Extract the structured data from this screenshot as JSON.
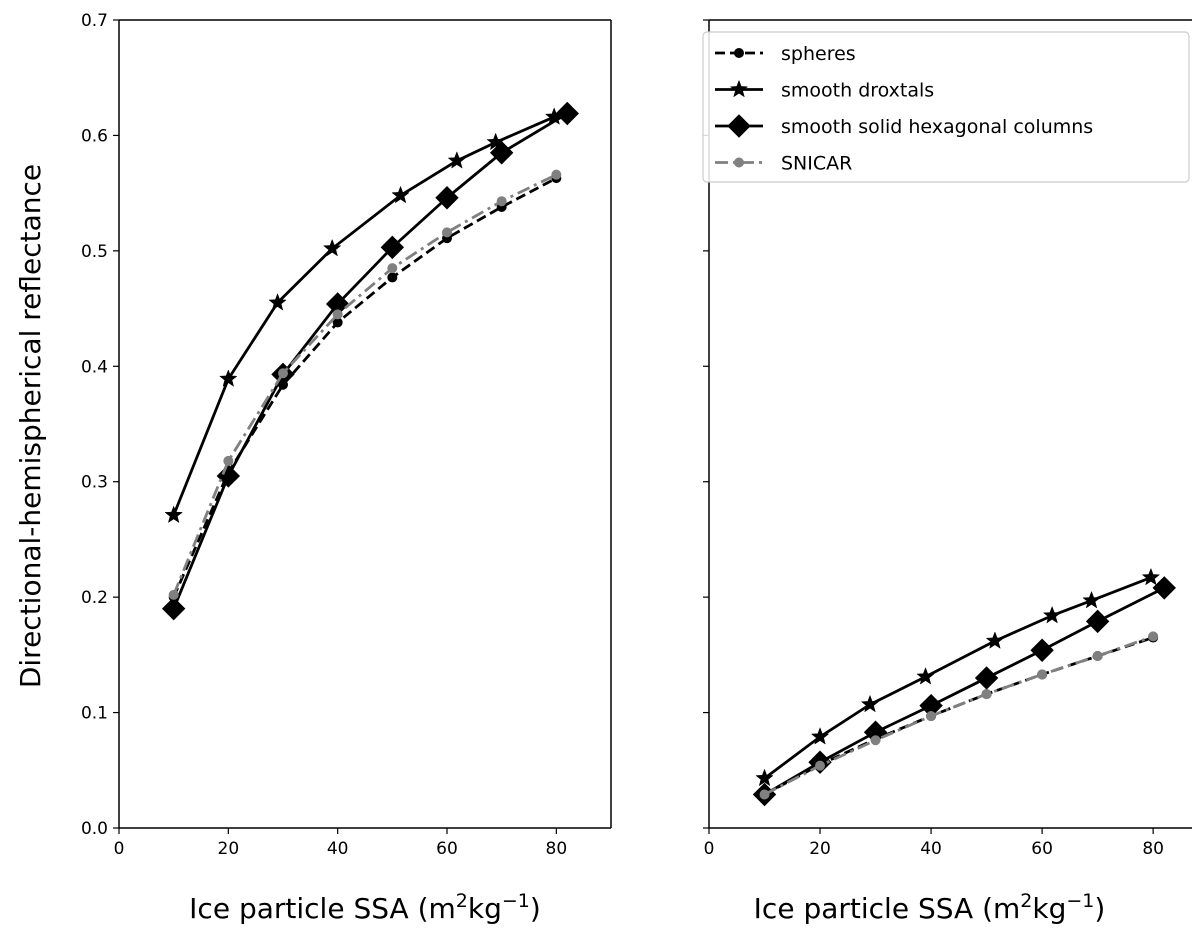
{
  "chart_data": [
    {
      "type": "line",
      "panel": "left",
      "ylabel": "Directional-hemispherical reflectance",
      "xlabel": {
        "main": "Ice particle SSA (m",
        "sup1": "2",
        "mid": "kg",
        "sup2": "−1",
        "end": ")"
      },
      "xlim": [
        0,
        90
      ],
      "ylim": [
        0.0,
        0.7
      ],
      "xticks": [
        "0",
        "20",
        "40",
        "60",
        "80"
      ],
      "xtick_values": [
        0,
        20,
        40,
        60,
        80
      ],
      "yticks": [
        "0.0",
        "0.1",
        "0.2",
        "0.3",
        "0.4",
        "0.5",
        "0.6",
        "0.7"
      ],
      "ytick_values": [
        0.0,
        0.1,
        0.2,
        0.3,
        0.4,
        0.5,
        0.6,
        0.7
      ],
      "show_ytick_labels": true,
      "grid": false,
      "series": [
        {
          "name": "spheres",
          "color": "#000000",
          "dash": "dashed",
          "marker": "circle",
          "x": [
            10,
            20,
            30,
            40,
            50,
            60,
            70,
            80
          ],
          "y": [
            0.2,
            0.308,
            0.384,
            0.438,
            0.477,
            0.511,
            0.538,
            0.563
          ]
        },
        {
          "name": "smooth droxtals",
          "color": "#000000",
          "dash": "solid",
          "marker": "star",
          "x": [
            10,
            20,
            29,
            39,
            51.5,
            61.8,
            68.9,
            79.6
          ],
          "y": [
            0.271,
            0.389,
            0.455,
            0.502,
            0.548,
            0.578,
            0.594,
            0.616
          ]
        },
        {
          "name": "smooth solid hexagonal columns",
          "color": "#000000",
          "dash": "solid",
          "marker": "diamond",
          "x": [
            10,
            20,
            30,
            40,
            50,
            60,
            70,
            82
          ],
          "y": [
            0.19,
            0.305,
            0.393,
            0.454,
            0.503,
            0.546,
            0.585,
            0.619
          ]
        },
        {
          "name": "SNICAR",
          "color": "#808080",
          "dash": "dashdot",
          "marker": "circle",
          "x": [
            10,
            20,
            30,
            40,
            50,
            60,
            70,
            80
          ],
          "y": [
            0.202,
            0.318,
            0.394,
            0.445,
            0.485,
            0.516,
            0.543,
            0.566
          ]
        }
      ]
    },
    {
      "type": "line",
      "panel": "right",
      "ylabel": "",
      "xlabel": {
        "main": "Ice particle SSA (m",
        "sup1": "2",
        "mid": "kg",
        "sup2": "−1",
        "end": ")"
      },
      "xlim": [
        0,
        87
      ],
      "ylim": [
        0.0,
        0.7
      ],
      "xticks": [
        "0",
        "20",
        "40",
        "60",
        "80"
      ],
      "xtick_values": [
        0,
        20,
        40,
        60,
        80
      ],
      "yticks": [],
      "ytick_values": [
        0.0,
        0.1,
        0.2,
        0.3,
        0.4,
        0.5,
        0.6,
        0.7
      ],
      "show_ytick_labels": false,
      "grid": false,
      "legend": "top-right",
      "series": [
        {
          "name": "spheres",
          "color": "#000000",
          "dash": "dashed",
          "marker": "circle",
          "x": [
            10,
            20,
            30,
            40,
            50,
            60,
            70,
            80
          ],
          "y": [
            0.029,
            0.055,
            0.077,
            0.097,
            0.116,
            0.133,
            0.149,
            0.165
          ]
        },
        {
          "name": "smooth droxtals",
          "color": "#000000",
          "dash": "solid",
          "marker": "star",
          "x": [
            10,
            20,
            29,
            39,
            51.5,
            61.8,
            68.9,
            79.6
          ],
          "y": [
            0.043,
            0.079,
            0.107,
            0.131,
            0.162,
            0.184,
            0.197,
            0.217
          ]
        },
        {
          "name": "smooth solid hexagonal columns",
          "color": "#000000",
          "dash": "solid",
          "marker": "diamond",
          "x": [
            10,
            20,
            30,
            40,
            50,
            60,
            70,
            82
          ],
          "y": [
            0.029,
            0.057,
            0.083,
            0.106,
            0.13,
            0.154,
            0.179,
            0.208
          ]
        },
        {
          "name": "SNICAR",
          "color": "#808080",
          "dash": "dashdot",
          "marker": "circle",
          "x": [
            10,
            20,
            30,
            40,
            50,
            60,
            70,
            80
          ],
          "y": [
            0.029,
            0.054,
            0.076,
            0.097,
            0.116,
            0.133,
            0.149,
            0.166
          ]
        }
      ]
    }
  ]
}
